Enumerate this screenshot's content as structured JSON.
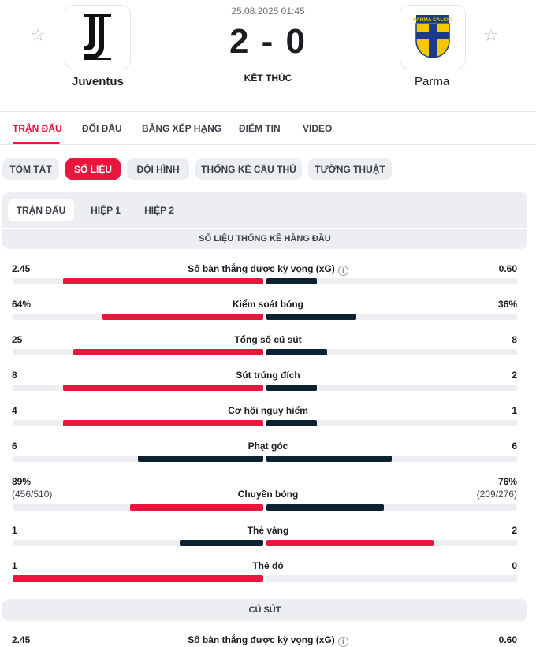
{
  "match": {
    "datetime": "25.08.2025 01:45",
    "score": "2 - 0",
    "status": "KẾT THÚC",
    "home": {
      "name": "Juventus",
      "logo": "juventus-logo"
    },
    "away": {
      "name": "Parma",
      "logo": "parma-logo",
      "logo_text": "PARMA CALCIO"
    }
  },
  "main_tabs": [
    "TRẬN ĐẤU",
    "ĐỐI ĐẦU",
    "BẢNG XẾP HẠNG",
    "ĐIỂM TIN",
    "VIDEO"
  ],
  "sub_tabs": [
    "TÓM TẮT",
    "SỐ LIỆU",
    "ĐỘI HÌNH",
    "THỐNG KÊ CẦU THỦ",
    "TƯỜNG THUẬT"
  ],
  "period_tabs": [
    "TRẬN ĐẤU",
    "HIỆP 1",
    "HIỆP 2"
  ],
  "sections": {
    "top": "SỐ LIỆU THỐNG KÊ HÀNG ĐẦU",
    "shots": "CÚ SÚT"
  },
  "colors": {
    "accent": "#e8163d",
    "navy": "#0d2230",
    "track": "#eceef1"
  },
  "stats": [
    {
      "label": "Số bàn thắng được kỳ vọng (xG)",
      "home": "2.45",
      "away": "0.60",
      "home_frac": 0.8,
      "away_frac": 0.2,
      "home_color": "red",
      "away_color": "navy",
      "info": "i"
    },
    {
      "label": "Kiểm soát bóng",
      "home": "64%",
      "away": "36%",
      "home_frac": 0.64,
      "away_frac": 0.36,
      "home_color": "red",
      "away_color": "navy"
    },
    {
      "label": "Tổng số cú sút",
      "home": "25",
      "away": "8",
      "home_frac": 0.757,
      "away_frac": 0.243,
      "home_color": "red",
      "away_color": "navy"
    },
    {
      "label": "Sút trúng đích",
      "home": "8",
      "away": "2",
      "home_frac": 0.8,
      "away_frac": 0.2,
      "home_color": "red",
      "away_color": "navy"
    },
    {
      "label": "Cơ hội nguy hiểm",
      "home": "4",
      "away": "1",
      "home_frac": 0.8,
      "away_frac": 0.2,
      "home_color": "red",
      "away_color": "navy"
    },
    {
      "label": "Phạt góc",
      "home": "6",
      "away": "6",
      "home_frac": 0.5,
      "away_frac": 0.5,
      "home_color": "navy",
      "away_color": "navy"
    },
    {
      "label": "Chuyền bóng",
      "home": "89%",
      "away": "76%",
      "home_sub": "(456/510)",
      "away_sub": "(209/276)",
      "home_frac": 0.53,
      "away_frac": 0.47,
      "home_color": "red",
      "away_color": "navy"
    },
    {
      "label": "Thẻ vàng",
      "home": "1",
      "away": "2",
      "home_frac": 0.333,
      "away_frac": 0.667,
      "home_color": "navy",
      "away_color": "red"
    },
    {
      "label": "Thẻ đỏ",
      "home": "1",
      "away": "0",
      "home_frac": 1.0,
      "away_frac": 0.0,
      "home_color": "red",
      "away_color": "navy"
    }
  ],
  "shots_first": {
    "label": "Số bàn thắng được kỳ vọng (xG)",
    "home": "2.45",
    "away": "0.60",
    "info": "i"
  }
}
